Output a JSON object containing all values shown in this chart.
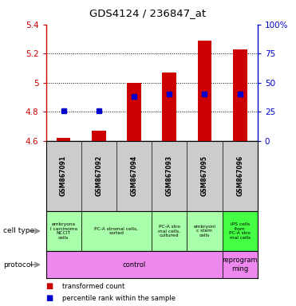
{
  "title": "GDS4124 / 236847_at",
  "samples": [
    "GSM867091",
    "GSM867092",
    "GSM867094",
    "GSM867093",
    "GSM867095",
    "GSM867096"
  ],
  "transformed_counts": [
    4.62,
    4.67,
    5.0,
    5.07,
    5.29,
    5.23
  ],
  "percentile_ranks": [
    26,
    26,
    38,
    40,
    40,
    40
  ],
  "ylim_left": [
    4.6,
    5.4
  ],
  "ylim_right": [
    0,
    100
  ],
  "yticks_left": [
    4.6,
    4.8,
    5.0,
    5.2,
    5.4
  ],
  "yticks_right": [
    0,
    25,
    50,
    75,
    100
  ],
  "left_tick_labels": [
    "4.6",
    "4.8",
    "5",
    "5.2",
    "5.4"
  ],
  "right_tick_labels": [
    "0",
    "25",
    "50",
    "75",
    "100%"
  ],
  "bar_color": "#cc0000",
  "dot_color": "#0000cc",
  "cell_types": [
    {
      "text": "embryona\nl carcinoma\nNCCIT\ncells",
      "span": [
        0,
        1
      ],
      "color": "#aaffaa"
    },
    {
      "text": "PC-A stromal cells,\nsorted",
      "span": [
        1,
        3
      ],
      "color": "#aaffaa"
    },
    {
      "text": "PC-A stro\nmal cells,\ncultured",
      "span": [
        3,
        4
      ],
      "color": "#aaffaa"
    },
    {
      "text": "embryoni\nc stem\ncells",
      "span": [
        4,
        5
      ],
      "color": "#aaffaa"
    },
    {
      "text": "iPS cells\nfrom\nPC-A stro\nmal cells",
      "span": [
        5,
        6
      ],
      "color": "#44ff44"
    }
  ],
  "protocol_groups": [
    {
      "text": "control",
      "span": [
        0,
        5
      ],
      "color": "#ee88ee"
    },
    {
      "text": "reprogram\nming",
      "span": [
        5,
        6
      ],
      "color": "#ee88ee"
    }
  ],
  "legend_items": [
    {
      "color": "#cc0000",
      "label": "transformed count"
    },
    {
      "color": "#0000cc",
      "label": "percentile rank within the sample"
    }
  ],
  "bg_color": "#ffffff",
  "left_axis_color": "#cc0000",
  "right_axis_color": "#0000cc",
  "label_bg": "#cccccc",
  "bar_width": 0.4
}
